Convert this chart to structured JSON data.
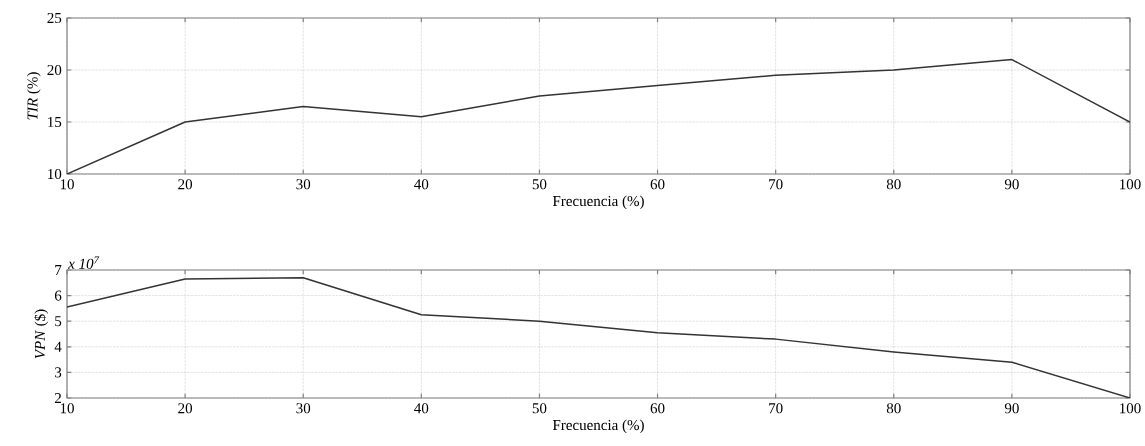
{
  "chart_data": [
    {
      "type": "line",
      "xlabel": "Frecuencia (%)",
      "ylabel": "*TIR* (%)",
      "color": "#333333",
      "grid": true,
      "x": [
        10,
        20,
        30,
        40,
        50,
        60,
        70,
        80,
        90,
        100
      ],
      "values": [
        10,
        15,
        16.5,
        15.5,
        17.5,
        18.5,
        19.5,
        20,
        21,
        15
      ],
      "xlim": [
        10,
        100
      ],
      "ylim": [
        10,
        25
      ],
      "xticks": [
        10,
        20,
        30,
        40,
        50,
        60,
        70,
        80,
        90,
        100
      ],
      "yticks": [
        10,
        15,
        20,
        25
      ]
    },
    {
      "type": "line",
      "xlabel": "Frecuencia (%)",
      "ylabel": "*VPN* ($)",
      "color": "#333333",
      "grid": true,
      "annotations": [
        "x 10$^{7}$"
      ],
      "x": [
        10,
        20,
        30,
        40,
        50,
        60,
        70,
        80,
        90,
        100
      ],
      "values": [
        5.55,
        6.65,
        6.7,
        5.25,
        5.0,
        4.55,
        4.3,
        3.8,
        3.4,
        2.0
      ],
      "xlim": [
        10,
        100
      ],
      "ylim": [
        2,
        7
      ],
      "xticks": [
        10,
        20,
        30,
        40,
        50,
        60,
        70,
        80,
        90,
        100
      ],
      "yticks": [
        2,
        3,
        4,
        5,
        6,
        7
      ]
    }
  ]
}
